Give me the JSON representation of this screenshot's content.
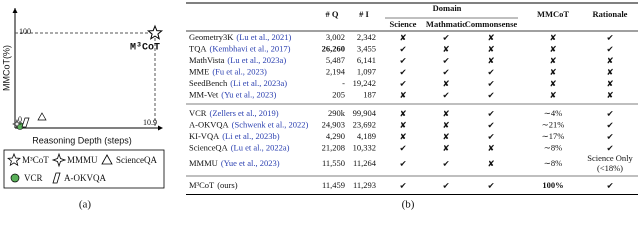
{
  "figure_a": {
    "y_axis_label": "MMCoT(%)",
    "x_axis_label": "Reasoning Depth (steps)",
    "y_tick_top": "100",
    "y_tick_bottom": "0",
    "x_tick": "10.9",
    "point_label": "M³CoT",
    "legend": [
      "M³CoT",
      "MMMU",
      "ScienceQA",
      "VCR",
      "A-OKVQA"
    ],
    "caption": "(a)"
  },
  "table": {
    "headers": {
      "q": "# Q",
      "i": "# I",
      "domain": "Domain",
      "science": "Science",
      "math": "Mathmatic",
      "commonsense": "Commonsense",
      "mmcot": "MMCoT",
      "rationale": "Rationale"
    },
    "symbols": {
      "yes": "✔",
      "no": "✘",
      "yes_color": "#3a9a3a",
      "no_color": "#d0302f"
    },
    "citation_color": "#2a3fb0",
    "groups": [
      [
        {
          "name": "Geometry3K",
          "citation": "(Lu et al., 2021)",
          "q": "3,002",
          "i": "2,342",
          "science": false,
          "math": true,
          "commonsense": false,
          "mmcot": false,
          "rationale": true
        },
        {
          "name": "TQA",
          "citation": "(Kembhavi et al., 2017)",
          "q": "26,260",
          "i": "3,455",
          "science": true,
          "math": false,
          "commonsense": false,
          "mmcot": false,
          "rationale": true,
          "bold": [
            "q"
          ]
        },
        {
          "name": "MathVista",
          "citation": "(Lu et al., 2023a)",
          "q": "5,487",
          "i": "6,141",
          "science": true,
          "math": true,
          "commonsense": false,
          "mmcot": false,
          "rationale": false
        },
        {
          "name": "MME",
          "citation": "(Fu et al., 2023)",
          "q": "2,194",
          "i": "1,097",
          "science": true,
          "math": true,
          "commonsense": true,
          "mmcot": false,
          "rationale": false
        },
        {
          "name": "SeedBench",
          "citation": "(Li et al., 2023a)",
          "q": "-",
          "i": "19,242",
          "science": true,
          "math": false,
          "commonsense": true,
          "mmcot": false,
          "rationale": false
        },
        {
          "name": "MM-Vet",
          "citation": "(Yu et al., 2023)",
          "q": "205",
          "i": "187",
          "science": false,
          "math": true,
          "commonsense": true,
          "mmcot": false,
          "rationale": false
        }
      ],
      [
        {
          "name": "VCR",
          "citation": "(Zellers et al., 2019)",
          "q": "290k",
          "i": "99,904",
          "science": false,
          "math": false,
          "commonsense": true,
          "mmcot": "∼4%",
          "rationale": true
        },
        {
          "name": "A-OKVQA",
          "citation": "(Schwenk et al., 2022)",
          "q": "24,903",
          "i": "23,692",
          "science": false,
          "math": false,
          "commonsense": true,
          "mmcot": "∼21%",
          "rationale": true
        },
        {
          "name": "KI-VQA",
          "citation": "(Li et al., 2023b)",
          "q": "4,290",
          "i": "4,189",
          "science": false,
          "math": false,
          "commonsense": true,
          "mmcot": "∼17%",
          "rationale": true
        },
        {
          "name": "ScienceQA",
          "citation": "(Lu et al., 2022a)",
          "q": "21,208",
          "i": "10,332",
          "science": true,
          "math": false,
          "commonsense": false,
          "mmcot": "∼8%",
          "rationale": true
        },
        {
          "name": "MMMU",
          "citation": "(Yue et al., 2023)",
          "q": "11,550",
          "i": "11,264",
          "science": true,
          "math": true,
          "commonsense": false,
          "mmcot": "∼8%",
          "rationale": "Science Only",
          "rationale_note": "(<18%)"
        }
      ],
      [
        {
          "name": "M³CoT",
          "citation": "(ours)",
          "q": "11,459",
          "i": "11,293",
          "science": true,
          "math": true,
          "commonsense": true,
          "mmcot": "100%",
          "rationale": true,
          "bold": [
            "mmcot"
          ]
        }
      ]
    ],
    "caption": "(b)"
  }
}
